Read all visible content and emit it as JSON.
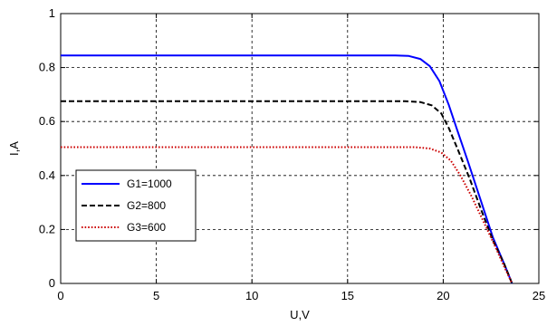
{
  "chart_data": {
    "type": "line",
    "title": "",
    "xlabel": "U,V",
    "ylabel": "I,A",
    "xlim": [
      0,
      25
    ],
    "ylim": [
      0,
      1
    ],
    "xticks": [
      0,
      5,
      10,
      15,
      20,
      25
    ],
    "yticks": [
      0,
      0.2,
      0.4,
      0.6,
      0.8,
      1
    ],
    "xtick_labels": [
      "0",
      "5",
      "10",
      "15",
      "20",
      "25"
    ],
    "ytick_labels": [
      "0",
      "0.2",
      "0.4",
      "0.6",
      "0.8",
      "1"
    ],
    "grid": true,
    "legend_position": "center-left",
    "series": [
      {
        "name": "G1=1000",
        "color": "#0000ff",
        "line_style": "solid",
        "points": [
          [
            0,
            0.845
          ],
          [
            5,
            0.845
          ],
          [
            10,
            0.845
          ],
          [
            15,
            0.845
          ],
          [
            17.5,
            0.845
          ],
          [
            18.2,
            0.843
          ],
          [
            18.8,
            0.832
          ],
          [
            19.3,
            0.805
          ],
          [
            19.8,
            0.75
          ],
          [
            20.3,
            0.66
          ],
          [
            20.7,
            0.575
          ],
          [
            21.3,
            0.45
          ],
          [
            22.0,
            0.3
          ],
          [
            22.6,
            0.17
          ],
          [
            23.2,
            0.07
          ],
          [
            23.6,
            0.0
          ]
        ]
      },
      {
        "name": "G2=800",
        "color": "#000000",
        "line_style": "dashed",
        "points": [
          [
            0,
            0.675
          ],
          [
            5,
            0.675
          ],
          [
            10,
            0.675
          ],
          [
            15,
            0.675
          ],
          [
            18.0,
            0.675
          ],
          [
            18.8,
            0.672
          ],
          [
            19.4,
            0.66
          ],
          [
            19.9,
            0.63
          ],
          [
            20.3,
            0.575
          ],
          [
            20.8,
            0.49
          ],
          [
            21.4,
            0.385
          ],
          [
            22.0,
            0.27
          ],
          [
            22.6,
            0.16
          ],
          [
            23.2,
            0.07
          ],
          [
            23.6,
            0.0
          ]
        ]
      },
      {
        "name": "G3=600",
        "color": "#cc0000",
        "line_style": "dotted",
        "points": [
          [
            0,
            0.505
          ],
          [
            5,
            0.505
          ],
          [
            10,
            0.505
          ],
          [
            15,
            0.505
          ],
          [
            18.5,
            0.505
          ],
          [
            19.3,
            0.5
          ],
          [
            19.9,
            0.485
          ],
          [
            20.4,
            0.455
          ],
          [
            20.9,
            0.4
          ],
          [
            21.5,
            0.32
          ],
          [
            22.1,
            0.23
          ],
          [
            22.7,
            0.14
          ],
          [
            23.2,
            0.06
          ],
          [
            23.6,
            0.0
          ]
        ]
      }
    ]
  }
}
